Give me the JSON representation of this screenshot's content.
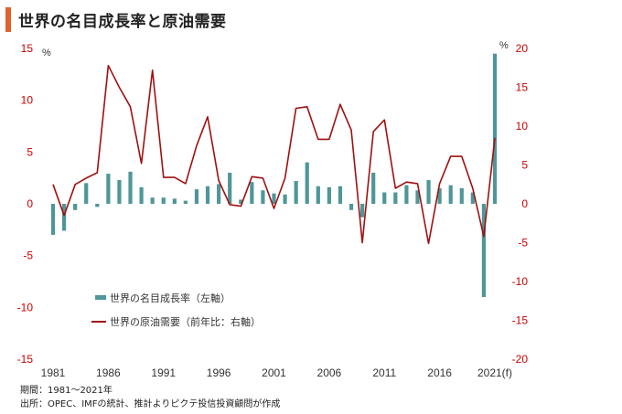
{
  "title": "世界の名目成長率と原油需要",
  "colors": {
    "accent": "#E0642C",
    "bar": "#4F9698",
    "line": "#A01010",
    "tick": "#cc0000"
  },
  "chart_data": {
    "type": "bar+line",
    "x_ticks": [
      "1981",
      "1986",
      "1991",
      "1996",
      "2001",
      "2006",
      "2011",
      "2016",
      "2021(f)"
    ],
    "left_axis": {
      "unit": "%",
      "ylim": [
        -15,
        15
      ],
      "ticks": [
        "15",
        "10",
        "5",
        "0",
        "-5",
        "-10",
        "-15"
      ]
    },
    "right_axis": {
      "unit": "%",
      "ylim": [
        -20,
        20
      ],
      "ticks": [
        "20",
        "15",
        "10",
        "5",
        "0",
        "-5",
        "-10",
        "-15",
        "-20"
      ]
    },
    "years": [
      1981,
      1982,
      1983,
      1984,
      1985,
      1986,
      1987,
      1988,
      1989,
      1990,
      1991,
      1992,
      1993,
      1994,
      1995,
      1996,
      1997,
      1998,
      1999,
      2000,
      2001,
      2002,
      2003,
      2004,
      2005,
      2006,
      2007,
      2008,
      2009,
      2010,
      2011,
      2012,
      2013,
      2014,
      2015,
      2016,
      2017,
      2018,
      2019,
      2020,
      2021
    ],
    "series": [
      {
        "name": "世界の名目成長率（左軸）",
        "type": "bar",
        "axis": "left",
        "values": [
          -3.0,
          -2.6,
          -0.6,
          2.0,
          -0.3,
          2.9,
          2.3,
          3.1,
          1.6,
          0.6,
          0.6,
          0.5,
          0.3,
          1.4,
          1.7,
          1.9,
          3.0,
          0.4,
          2.1,
          1.3,
          1.0,
          0.9,
          2.2,
          4.0,
          1.7,
          1.6,
          1.7,
          -0.6,
          -1.3,
          3.0,
          1.1,
          1.1,
          1.8,
          1.3,
          2.3,
          1.5,
          1.8,
          1.5,
          1.1,
          -9.0,
          14.5
        ]
      },
      {
        "name": "世界の原油需要（前年比：右軸）",
        "type": "line",
        "axis": "right",
        "values": [
          2.5,
          -1.5,
          2.5,
          3.3,
          4.0,
          17.8,
          15.0,
          12.5,
          5.2,
          17.2,
          3.4,
          3.4,
          2.6,
          7.5,
          11.2,
          3.0,
          -0.1,
          -0.3,
          3.5,
          3.3,
          -0.6,
          3.3,
          12.3,
          12.5,
          8.3,
          8.3,
          12.8,
          9.5,
          -5.0,
          9.3,
          10.8,
          2.0,
          2.8,
          2.6,
          -5.1,
          2.6,
          6.1,
          6.1,
          2.0,
          -4.2,
          8.5
        ]
      }
    ]
  },
  "footnotes": [
    "期間：1981～2021年",
    "出所：OPEC、IMFの統計、推計よりピクテ投信投資顧問が作成"
  ]
}
